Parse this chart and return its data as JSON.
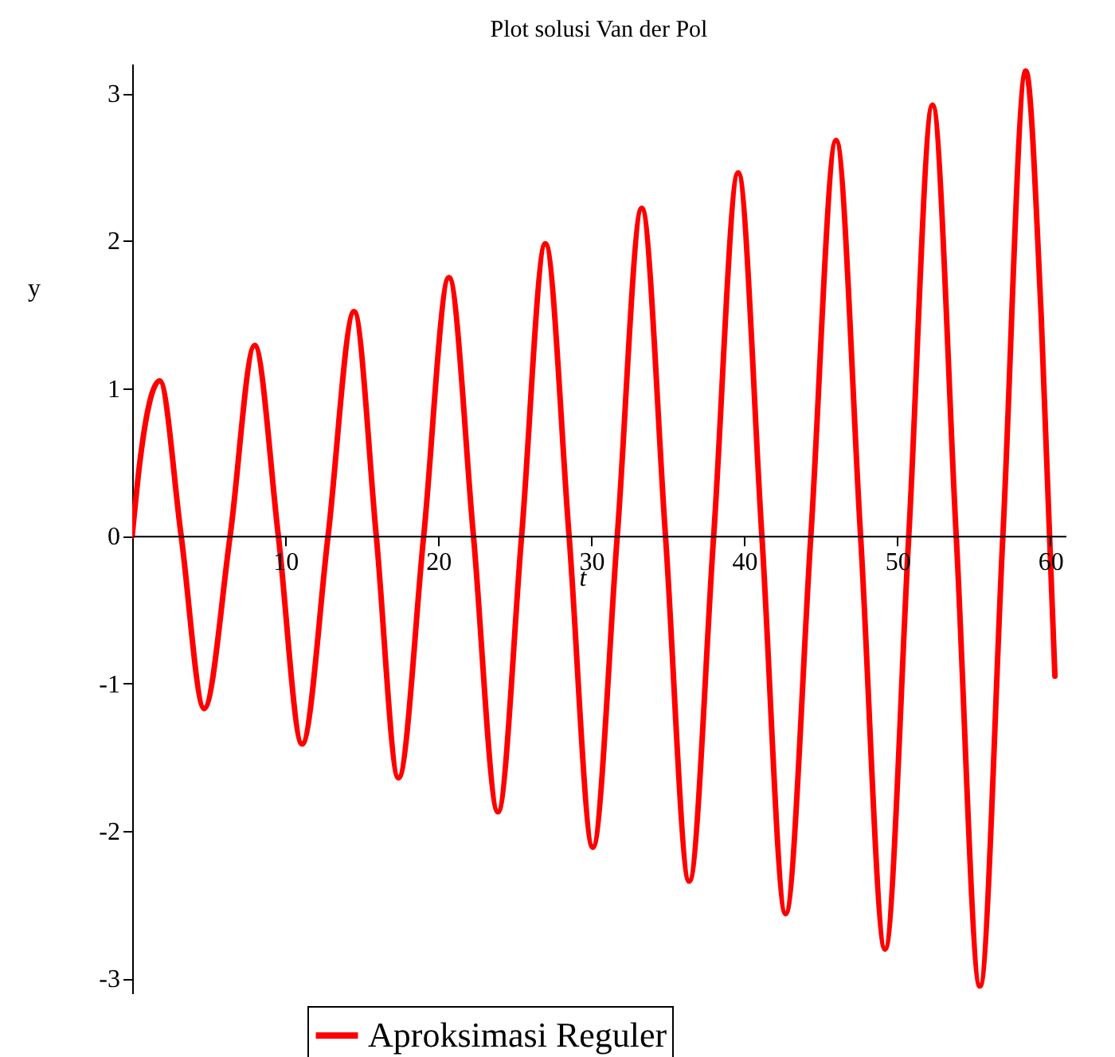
{
  "chart_data": {
    "type": "line",
    "title": "Plot solusi Van der Pol",
    "xlabel": "t",
    "ylabel": "y",
    "xlim": [
      0,
      61
    ],
    "ylim": [
      -3.1,
      3.2
    ],
    "xticks": [
      10,
      20,
      30,
      40,
      50,
      60
    ],
    "yticks": [
      -3,
      -2,
      -1,
      0,
      1,
      2,
      3
    ],
    "grid": false,
    "legend": "bottom",
    "marker": "none",
    "line_style": "solid",
    "series": [
      {
        "name": "Aproksimasi Reguler",
        "color": "#ff0000",
        "x": [
          0,
          0.5,
          1.8,
          3.2,
          4.7,
          6.4,
          8.0,
          9.55,
          11.1,
          12.8,
          14.5,
          15.95,
          17.4,
          19.05,
          20.7,
          22.3,
          23.9,
          25.45,
          27.0,
          28.55,
          30.1,
          31.7,
          33.3,
          34.85,
          36.4,
          38.0,
          39.6,
          41.15,
          42.7,
          44.35,
          46.0,
          47.6,
          49.2,
          50.75,
          52.3,
          53.85,
          55.4,
          56.9,
          58.4,
          59.4,
          60.3
        ],
        "values": [
          0,
          0.5,
          1.05,
          0,
          -1.17,
          0,
          1.29,
          0,
          -1.41,
          0,
          1.52,
          0,
          -1.64,
          0,
          1.75,
          0,
          -1.87,
          0,
          1.98,
          0,
          -2.11,
          0,
          2.22,
          0,
          -2.34,
          0,
          2.46,
          0,
          -2.56,
          0,
          2.68,
          0,
          -2.8,
          0,
          2.92,
          0,
          -3.05,
          0,
          3.15,
          1.5,
          -0.95
        ]
      }
    ]
  }
}
